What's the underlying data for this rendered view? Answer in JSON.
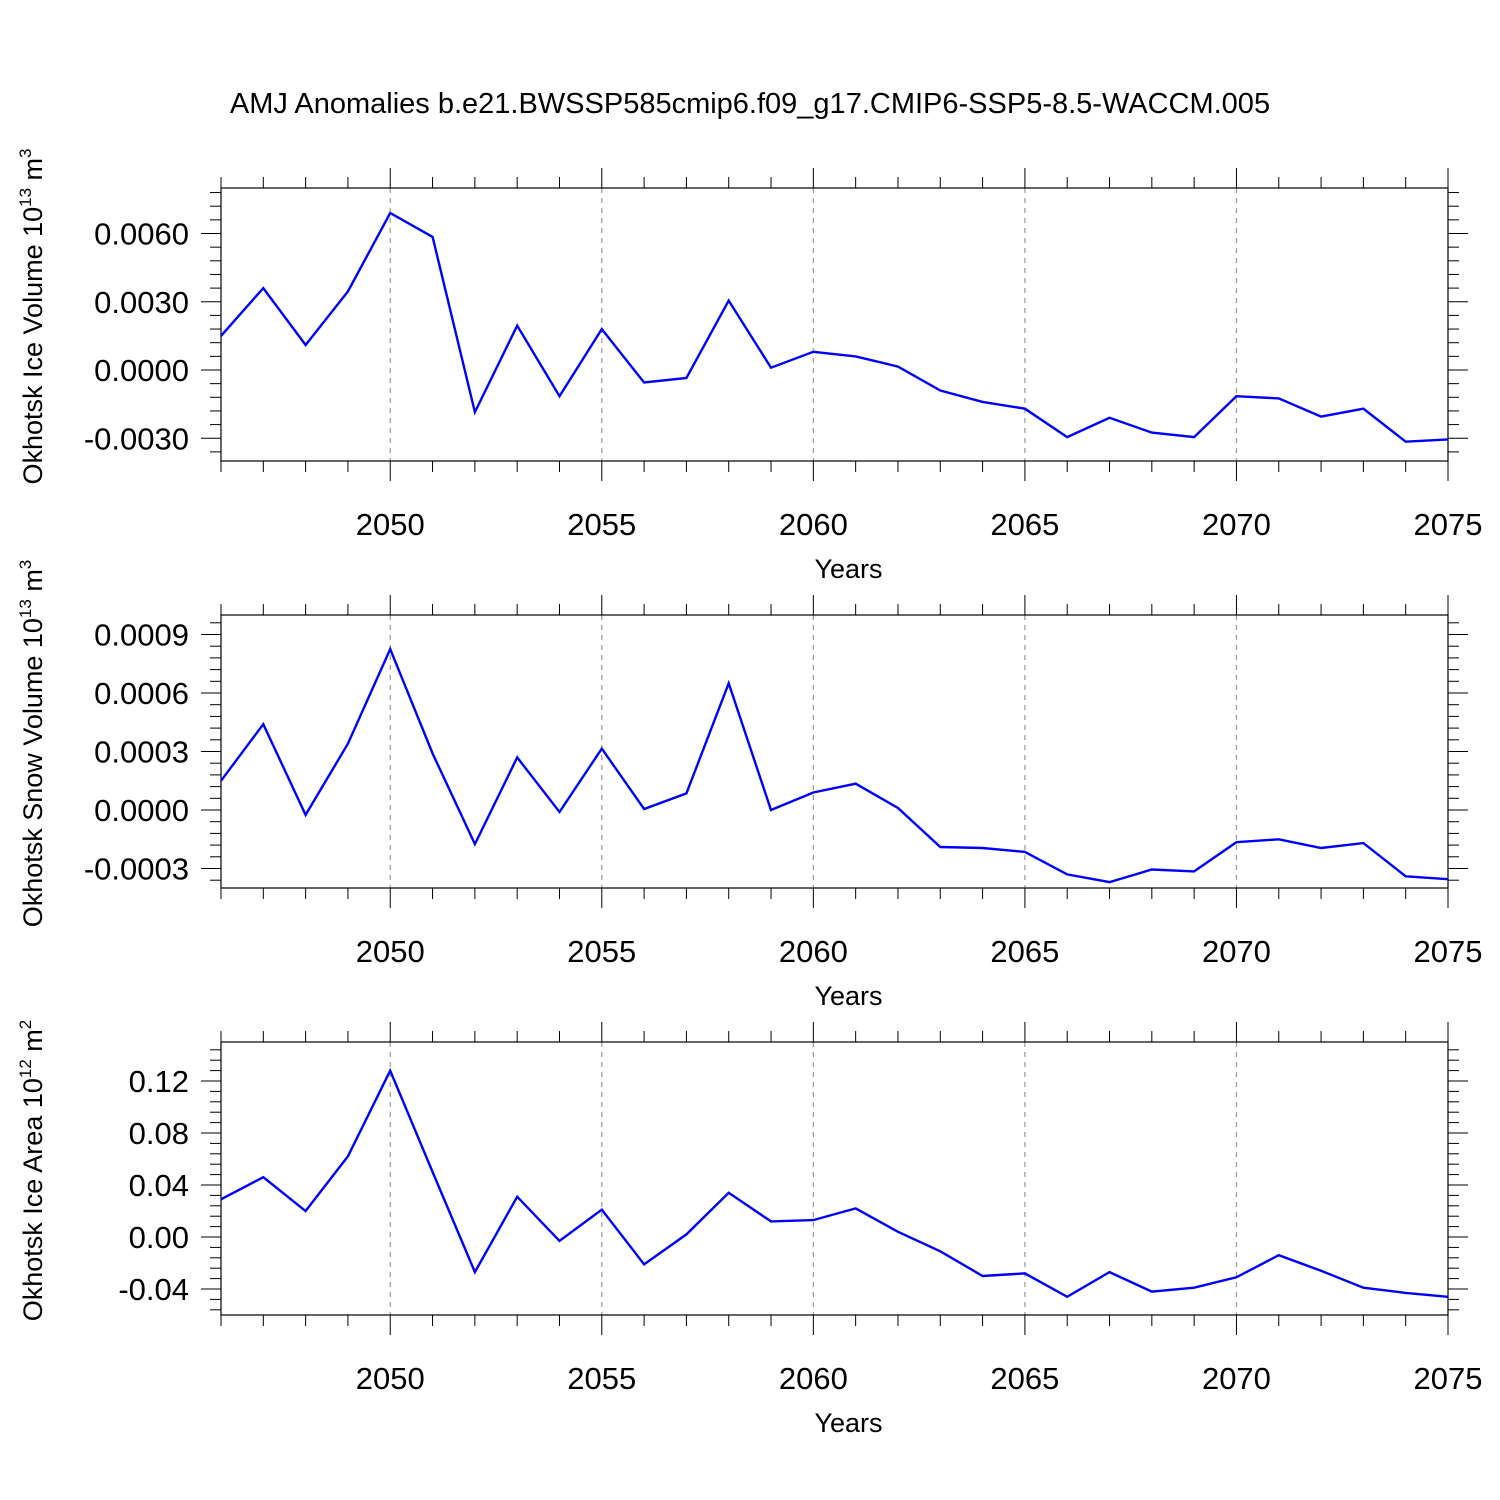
{
  "figure": {
    "title": "AMJ Anomalies b.e21.BWSSP585cmip6.f09_g17.CMIP6-SSP5-8.5-WACCM.005"
  },
  "colors": {
    "line": "#0000ff",
    "grid": "#999999"
  },
  "chart_data": [
    {
      "type": "line",
      "ylabel": {
        "main": "Okhotsk Ice Volume 10",
        "sup": "13",
        "unit": " m",
        "unit_sup": "3"
      },
      "xlabel": "Years",
      "xlim": [
        2046,
        2075
      ],
      "ylim": [
        -0.004,
        0.008
      ],
      "xticks": [
        "2050",
        "2055",
        "2060",
        "2065",
        "2070",
        "2075"
      ],
      "yticks": [
        "-0.0030",
        "0.0000",
        "0.0030",
        "0.0060"
      ],
      "x": [
        2046,
        2047,
        2048,
        2049,
        2050,
        2051,
        2052,
        2053,
        2054,
        2055,
        2056,
        2057,
        2058,
        2059,
        2060,
        2061,
        2062,
        2063,
        2064,
        2065,
        2066,
        2067,
        2068,
        2069,
        2070,
        2071,
        2072,
        2073,
        2074,
        2075
      ],
      "values": [
        0.0015,
        0.0036,
        0.0011,
        0.00345,
        0.0069,
        0.00585,
        -0.00185,
        0.00195,
        -0.00115,
        0.0018,
        -0.00055,
        -0.00035,
        0.00305,
        0.0001,
        0.0008,
        0.0006,
        0.00015,
        -0.0009,
        -0.0014,
        -0.0017,
        -0.00295,
        -0.0021,
        -0.00275,
        -0.00295,
        -0.00115,
        -0.00125,
        -0.00205,
        -0.0017,
        -0.00315,
        -0.00305
      ]
    },
    {
      "type": "line",
      "ylabel": {
        "main": "Okhotsk Snow Volume 10",
        "sup": "13",
        "unit": " m",
        "unit_sup": "3"
      },
      "xlabel": "Years",
      "xlim": [
        2046,
        2075
      ],
      "ylim": [
        -0.0004,
        0.001
      ],
      "xticks": [
        "2050",
        "2055",
        "2060",
        "2065",
        "2070",
        "2075"
      ],
      "yticks": [
        "-0.0003",
        "0.0000",
        "0.0003",
        "0.0006",
        "0.0009"
      ],
      "x": [
        2046,
        2047,
        2048,
        2049,
        2050,
        2051,
        2052,
        2053,
        2054,
        2055,
        2056,
        2057,
        2058,
        2059,
        2060,
        2061,
        2062,
        2063,
        2064,
        2065,
        2066,
        2067,
        2068,
        2069,
        2070,
        2071,
        2072,
        2073,
        2074,
        2075
      ],
      "values": [
        0.00015,
        0.00044,
        -2.5e-05,
        0.00034,
        0.000825,
        0.00029,
        -0.000175,
        0.00027,
        -1e-05,
        0.000315,
        5e-06,
        8.5e-05,
        0.00065,
        0.0,
        9e-05,
        0.000135,
        1e-05,
        -0.00019,
        -0.000195,
        -0.000215,
        -0.00033,
        -0.00037,
        -0.000305,
        -0.000315,
        -0.000165,
        -0.00015,
        -0.000195,
        -0.00017,
        -0.00034,
        -0.000355
      ]
    },
    {
      "type": "line",
      "ylabel": {
        "main": "Okhotsk Ice Area 10",
        "sup": "12",
        "unit": " m",
        "unit_sup": "2"
      },
      "xlabel": "Years",
      "xlim": [
        2046,
        2075
      ],
      "ylim": [
        -0.06,
        0.15
      ],
      "xticks": [
        "2050",
        "2055",
        "2060",
        "2065",
        "2070",
        "2075"
      ],
      "yticks": [
        "-0.04",
        "0.00",
        "0.04",
        "0.08",
        "0.12"
      ],
      "x": [
        2046,
        2047,
        2048,
        2049,
        2050,
        2051,
        2052,
        2053,
        2054,
        2055,
        2056,
        2057,
        2058,
        2059,
        2060,
        2061,
        2062,
        2063,
        2064,
        2065,
        2066,
        2067,
        2068,
        2069,
        2070,
        2071,
        2072,
        2073,
        2074,
        2075
      ],
      "values": [
        0.029,
        0.046,
        0.02,
        0.062,
        0.128,
        0.05,
        -0.027,
        0.031,
        -0.003,
        0.021,
        -0.021,
        0.002,
        0.034,
        0.012,
        0.013,
        0.022,
        0.004,
        -0.011,
        -0.03,
        -0.028,
        -0.046,
        -0.027,
        -0.042,
        -0.039,
        -0.031,
        -0.014,
        -0.026,
        -0.039,
        -0.043,
        -0.046
      ]
    }
  ]
}
